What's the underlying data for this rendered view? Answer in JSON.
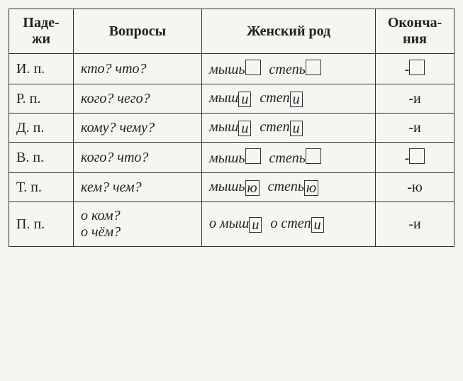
{
  "headers": {
    "cases": "Паде-\nжи",
    "questions": "Вопросы",
    "gender": "Женский  род",
    "endings": "Оконча-\nния"
  },
  "rows": [
    {
      "case": "И. п.",
      "question": "кто? что?",
      "words": [
        {
          "stem": "мышь",
          "box": ""
        },
        {
          "stem": "степь",
          "box": ""
        }
      ],
      "ending_prefix": "-",
      "ending_box": "",
      "ending_text": ""
    },
    {
      "case": "Р. п.",
      "question": "кого? чего?",
      "words": [
        {
          "stem": "мыш",
          "box": "и"
        },
        {
          "stem": "степ",
          "box": "и"
        }
      ],
      "ending_prefix": "",
      "ending_box": null,
      "ending_text": "-и"
    },
    {
      "case": "Д. п.",
      "question": "кому? чему?",
      "words": [
        {
          "stem": "мыш",
          "box": "и"
        },
        {
          "stem": "степ",
          "box": "и"
        }
      ],
      "ending_prefix": "",
      "ending_box": null,
      "ending_text": "-и"
    },
    {
      "case": "В. п.",
      "question": "кого? что?",
      "words": [
        {
          "stem": "мышь",
          "box": ""
        },
        {
          "stem": "степь",
          "box": ""
        }
      ],
      "ending_prefix": "-",
      "ending_box": "",
      "ending_text": ""
    },
    {
      "case": "Т. п.",
      "question": "кем? чем?",
      "words": [
        {
          "stem": "мышь",
          "box": "ю"
        },
        {
          "stem": "степь",
          "box": "ю"
        }
      ],
      "ending_prefix": "",
      "ending_box": null,
      "ending_text": "-ю"
    },
    {
      "case": "П. п.",
      "question": "о ком?\nо чём?",
      "words": [
        {
          "stem": "о мыш",
          "box": "и"
        },
        {
          "stem": "о степ",
          "box": "и"
        }
      ],
      "ending_prefix": "",
      "ending_box": null,
      "ending_text": "-и"
    }
  ],
  "style": {
    "background_color": "#f5f5f2",
    "border_color": "#333333",
    "text_color": "#222222",
    "header_fontsize": 20,
    "cell_fontsize": 20,
    "italic_cells": true,
    "col_widths_pct": [
      12,
      26,
      46,
      16
    ]
  }
}
